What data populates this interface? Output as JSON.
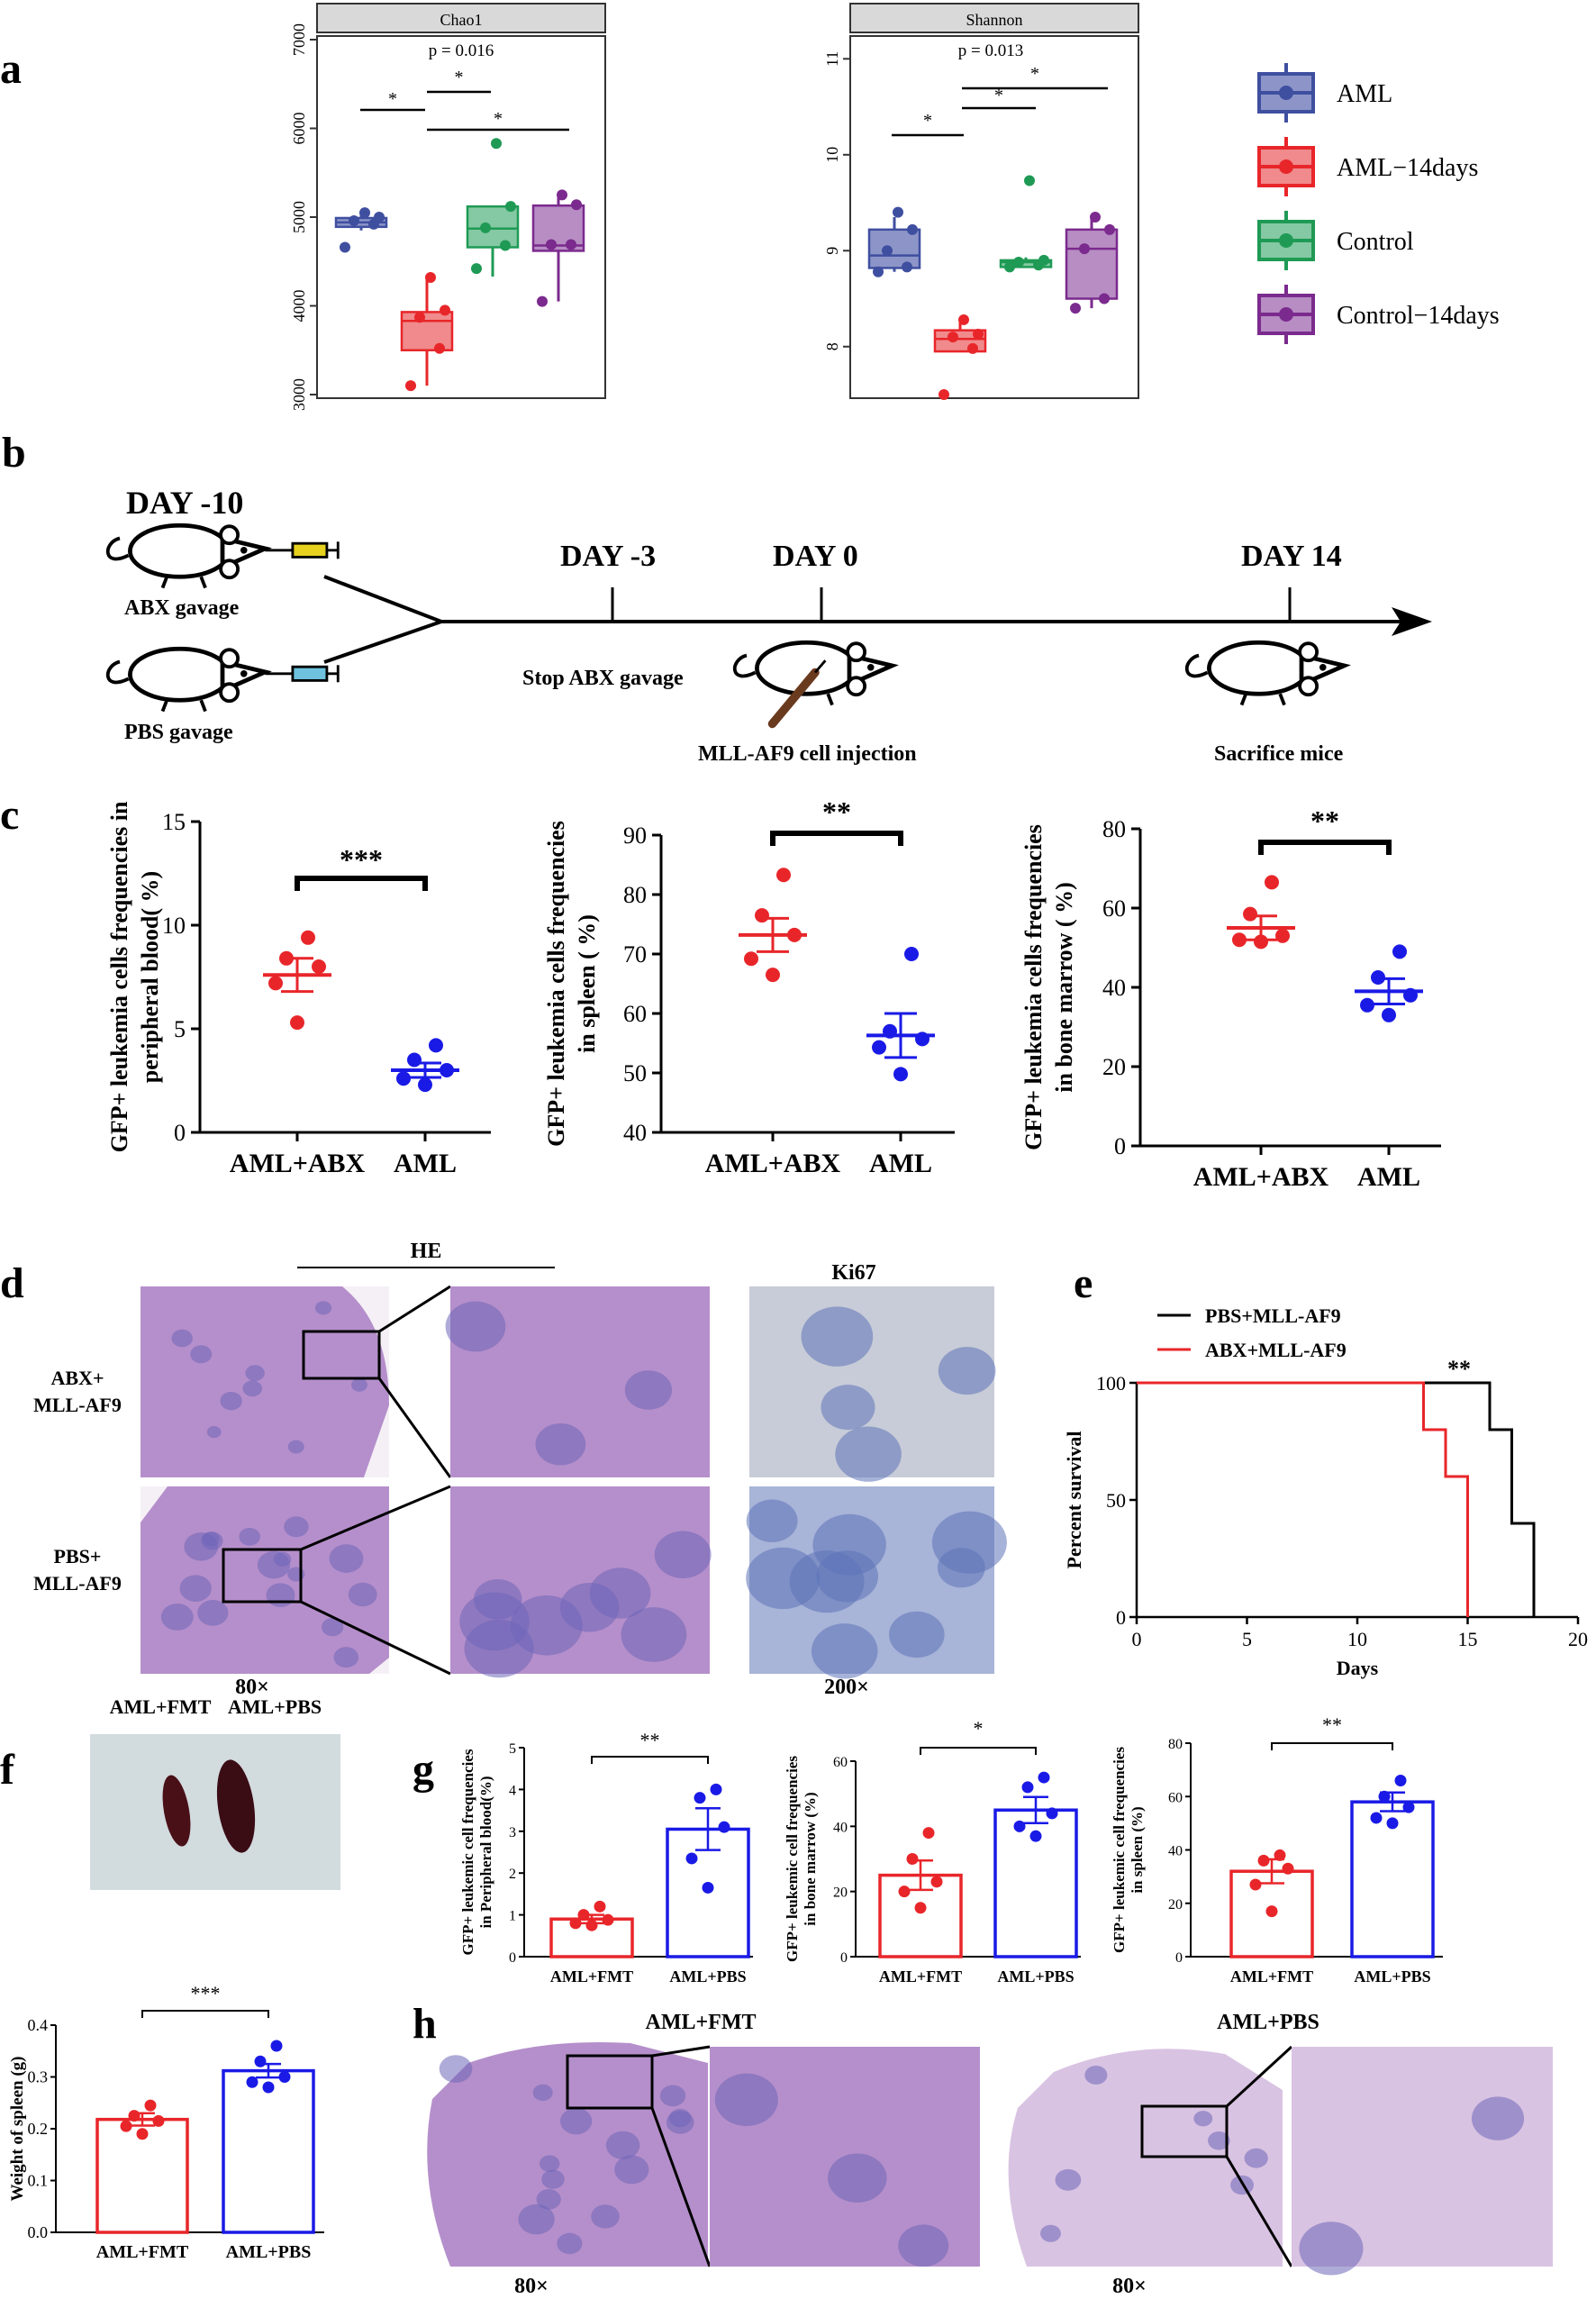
{
  "panel_letters": {
    "a": "a",
    "b": "b",
    "c": "c",
    "d": "d",
    "e": "e",
    "f": "f",
    "g": "g",
    "h": "h"
  },
  "colors": {
    "AML": "#3F4FA0",
    "AML-14days": "#E8262A",
    "Control": "#1F9A55",
    "Control-14days": "#7B2A8E",
    "red": "#E8262A",
    "blue": "#1A1AE6",
    "pbs_line": "#000000",
    "abx_line": "#E8262A",
    "tissue": "#B58FCB",
    "tissue_dark": "#6E66B8",
    "ki67_bg": "#C8CCD8",
    "ki67_dark": "#5D72B8"
  },
  "panel_a": {
    "legend": [
      "AML",
      "AML−14days",
      "Control",
      "Control−14days"
    ],
    "groups": [
      "AML",
      "AML-14days",
      "Control",
      "Control-14days"
    ]
  },
  "panel_b": {
    "day_m10": "DAY -10",
    "day_m3": "DAY -3",
    "day_0": "DAY 0",
    "day_14": "DAY 14",
    "abx": "ABX gavage",
    "pbs": "PBS gavage",
    "stop": "Stop ABX gavage",
    "inject": "MLL-AF9 cell injection",
    "sacrifice": "Sacrifice mice"
  },
  "panel_d": {
    "he": "HE",
    "ki67": "Ki67",
    "row1": [
      "ABX+",
      "MLL-AF9"
    ],
    "row2": [
      "PBS+",
      "MLL-AF9"
    ],
    "mag1": "80×",
    "mag2": "200×"
  },
  "panel_f": {
    "photo_l": "AML+FMT",
    "photo_r": "AML+PBS"
  },
  "panel_h": {
    "t1": "AML+FMT",
    "t2": "AML+PBS",
    "m1": "80×",
    "m2": "80×"
  },
  "chart_data": [
    {
      "id": "a1",
      "type": "box",
      "title": "Chao1",
      "ylim": [
        3000,
        7000
      ],
      "yticks": [
        3000,
        4000,
        5000,
        6000,
        7000
      ],
      "groups": [
        {
          "name": "AML",
          "q1": 4890,
          "median": 4940,
          "q3": 4990,
          "wlo": 4850,
          "whi": 5030,
          "points": [
            4660,
            4920,
            4960,
            5000,
            5050
          ]
        },
        {
          "name": "AML-14days",
          "q1": 3500,
          "median": 3830,
          "q3": 3930,
          "wlo": 3100,
          "whi": 4330,
          "points": [
            3100,
            3520,
            3870,
            3950,
            4320
          ]
        },
        {
          "name": "Control",
          "q1": 4660,
          "median": 4870,
          "q3": 5120,
          "wlo": 4330,
          "whi": 5130,
          "points": [
            4420,
            4680,
            4880,
            5120,
            5830
          ]
        },
        {
          "name": "Control-14days",
          "q1": 4620,
          "median": 4680,
          "q3": 5130,
          "wlo": 4050,
          "whi": 5260,
          "points": [
            4050,
            4690,
            4690,
            5140,
            5250
          ]
        }
      ],
      "annotations": [
        "p = 0.016",
        "*",
        "*",
        "*"
      ]
    },
    {
      "id": "a2",
      "type": "box",
      "title": "Shannon",
      "ylim": [
        7.5,
        11.2
      ],
      "yticks": [
        8,
        9,
        10,
        11
      ],
      "groups": [
        {
          "name": "AML",
          "q1": 8.82,
          "median": 8.95,
          "q3": 9.22,
          "wlo": 8.78,
          "whi": 9.35,
          "points": [
            8.78,
            8.83,
            9.0,
            9.22,
            9.4
          ]
        },
        {
          "name": "AML-14days",
          "q1": 7.95,
          "median": 8.08,
          "q3": 8.17,
          "wlo": 7.95,
          "whi": 8.3,
          "points": [
            7.5,
            7.98,
            8.1,
            8.13,
            8.28
          ]
        },
        {
          "name": "Control",
          "q1": 8.83,
          "median": 8.88,
          "q3": 8.9,
          "wlo": 8.83,
          "whi": 8.93,
          "points": [
            8.83,
            8.85,
            8.88,
            8.9,
            9.73
          ]
        },
        {
          "name": "Control-14days",
          "q1": 8.5,
          "median": 9.02,
          "q3": 9.22,
          "wlo": 8.4,
          "whi": 9.35,
          "points": [
            8.4,
            8.5,
            9.02,
            9.22,
            9.35
          ]
        }
      ],
      "annotations": [
        "p = 0.013",
        "*",
        "*",
        "*"
      ]
    },
    {
      "id": "c1",
      "type": "scatter",
      "ylabel": [
        "GFP+ leukemia cells frequencies in",
        "peripheral blood( %)"
      ],
      "ylim": [
        0,
        15
      ],
      "yticks": [
        0,
        5,
        10,
        15
      ],
      "categories": [
        "AML+ABX",
        "AML"
      ],
      "series": [
        {
          "name": "AML+ABX",
          "mean": 7.6,
          "sem": 0.8,
          "points": [
            5.3,
            7.2,
            8.0,
            8.4,
            9.4
          ]
        },
        {
          "name": "AML",
          "mean": 3.0,
          "sem": 0.35,
          "points": [
            2.3,
            2.6,
            3.0,
            3.5,
            4.2
          ]
        }
      ],
      "sig": "***"
    },
    {
      "id": "c2",
      "type": "scatter",
      "ylabel": [
        "GFP+ leukemia cells frequencies",
        "in spleen ( %)"
      ],
      "ylim": [
        40,
        90
      ],
      "yticks": [
        40,
        50,
        60,
        70,
        80,
        90
      ],
      "categories": [
        "AML+ABX",
        "AML"
      ],
      "series": [
        {
          "name": "AML+ABX",
          "mean": 73.2,
          "sem": 2.8,
          "points": [
            66.5,
            69.2,
            73.2,
            76.5,
            83.3
          ]
        },
        {
          "name": "AML",
          "mean": 56.3,
          "sem": 3.7,
          "points": [
            49.8,
            54.3,
            55.7,
            57.0,
            70.0
          ]
        }
      ],
      "sig": "**"
    },
    {
      "id": "c3",
      "type": "scatter",
      "ylabel": [
        "GFP+ leukemia cells frequencies",
        "in bone marrow ( %)"
      ],
      "ylim": [
        0,
        80
      ],
      "yticks": [
        0,
        20,
        40,
        60,
        80
      ],
      "categories": [
        "AML+ABX",
        "AML"
      ],
      "series": [
        {
          "name": "AML+ABX",
          "mean": 55.0,
          "sem": 3.0,
          "points": [
            51.5,
            52.0,
            53.0,
            58.5,
            66.5
          ]
        },
        {
          "name": "AML",
          "mean": 39.0,
          "sem": 3.2,
          "points": [
            33.0,
            35.5,
            38.0,
            42.5,
            49.0
          ]
        }
      ],
      "sig": "**"
    },
    {
      "id": "e",
      "type": "line",
      "xlabel": "Days",
      "ylabel": "Percent survival",
      "xlim": [
        0,
        20
      ],
      "ylim": [
        0,
        100
      ],
      "xticks": [
        0,
        5,
        10,
        15,
        20
      ],
      "yticks": [
        0,
        50,
        100
      ],
      "series": [
        {
          "name": "PBS+MLL-AF9",
          "steps": [
            [
              0,
              100
            ],
            [
              16,
              100
            ],
            [
              16,
              80
            ],
            [
              17,
              80
            ],
            [
              17,
              40
            ],
            [
              18,
              40
            ],
            [
              18,
              0
            ]
          ]
        },
        {
          "name": "ABX+MLL-AF9",
          "steps": [
            [
              0,
              100
            ],
            [
              13,
              100
            ],
            [
              13,
              80
            ],
            [
              14,
              80
            ],
            [
              14,
              60
            ],
            [
              15,
              60
            ],
            [
              15,
              0
            ]
          ]
        }
      ],
      "sig": "**"
    },
    {
      "id": "f",
      "type": "bar",
      "ylabel": "Weight of spleen (g)",
      "ylim": [
        0,
        0.4
      ],
      "yticks": [
        0.0,
        0.1,
        0.2,
        0.3,
        0.4
      ],
      "ytick_labels": [
        "0.0",
        "0.1",
        "0.2",
        "0.3",
        "0.4"
      ],
      "categories": [
        "AML+FMT",
        "AML+PBS"
      ],
      "series": [
        {
          "name": "AML+FMT",
          "value": 0.218,
          "sem": 0.012,
          "points": [
            0.19,
            0.205,
            0.215,
            0.225,
            0.245
          ]
        },
        {
          "name": "AML+PBS",
          "value": 0.312,
          "sem": 0.013,
          "points": [
            0.28,
            0.29,
            0.3,
            0.33,
            0.36
          ]
        }
      ],
      "sig": "***"
    },
    {
      "id": "g1",
      "type": "bar",
      "ylabel": [
        "GFP+ leukemic cell frequencies",
        "in  Peripheral blood(%)"
      ],
      "ylim": [
        0,
        5
      ],
      "yticks": [
        0,
        1,
        2,
        3,
        4,
        5
      ],
      "categories": [
        "AML+FMT",
        "AML+PBS"
      ],
      "series": [
        {
          "name": "AML+FMT",
          "value": 0.9,
          "sem": 0.1,
          "points": [
            0.75,
            0.8,
            0.88,
            1.0,
            1.2
          ]
        },
        {
          "name": "AML+PBS",
          "value": 3.05,
          "sem": 0.5,
          "points": [
            1.65,
            2.35,
            3.1,
            3.8,
            4.0
          ]
        }
      ],
      "sig": "**"
    },
    {
      "id": "g2",
      "type": "bar",
      "ylabel": [
        "GFP+ leukemic cell frequencies",
        "in bone marrow (%)"
      ],
      "ylim": [
        0,
        60
      ],
      "yticks": [
        0,
        20,
        40,
        60
      ],
      "categories": [
        "AML+FMT",
        "AML+PBS"
      ],
      "series": [
        {
          "name": "AML+FMT",
          "value": 25,
          "sem": 4.5,
          "points": [
            15,
            20,
            23,
            30,
            38
          ]
        },
        {
          "name": "AML+PBS",
          "value": 45,
          "sem": 4.0,
          "points": [
            37,
            40,
            44,
            52,
            55
          ]
        }
      ],
      "sig": "*"
    },
    {
      "id": "g3",
      "type": "bar",
      "ylabel": [
        "GFP+ leukemic cell frequencies",
        "in spleen (%)"
      ],
      "ylim": [
        0,
        80
      ],
      "yticks": [
        0,
        20,
        40,
        60,
        80
      ],
      "categories": [
        "AML+FMT",
        "AML+PBS"
      ],
      "series": [
        {
          "name": "AML+FMT",
          "value": 32,
          "sem": 4.5,
          "points": [
            17,
            27,
            33,
            36,
            38
          ]
        },
        {
          "name": "AML+PBS",
          "value": 58,
          "sem": 3.5,
          "points": [
            50,
            52,
            56,
            60,
            66
          ]
        }
      ],
      "sig": "**"
    }
  ]
}
